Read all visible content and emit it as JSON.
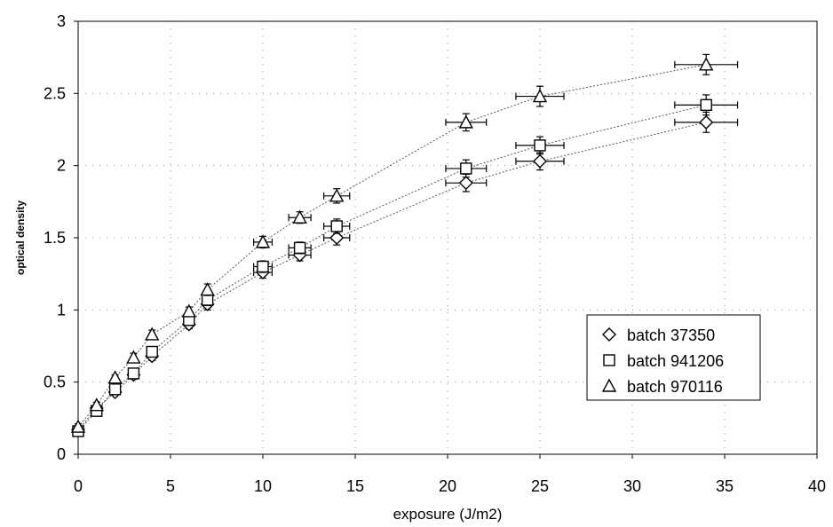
{
  "chart_data": {
    "type": "scatter",
    "title": "",
    "xlabel": "exposure (J/m2)",
    "ylabel": "optical density",
    "xlim": [
      0,
      40
    ],
    "ylim": [
      0,
      3
    ],
    "xticks": [
      "0",
      "5",
      "10",
      "15",
      "20",
      "25",
      "30",
      "35",
      "40"
    ],
    "yticks": [
      "0",
      "0.5",
      "1",
      "1.5",
      "2",
      "2.5",
      "3"
    ],
    "grid": "dotted",
    "legend_position": "lower-right",
    "series": [
      {
        "name": "batch 37350",
        "marker": "diamond",
        "x": [
          0,
          1,
          2,
          3,
          4,
          6,
          7,
          10,
          12,
          14,
          21,
          25,
          34
        ],
        "y": [
          0.17,
          0.32,
          0.43,
          0.55,
          0.68,
          0.9,
          1.04,
          1.26,
          1.38,
          1.5,
          1.88,
          2.03,
          2.3
        ],
        "xerr": [
          0,
          0,
          0,
          0,
          0,
          0,
          0,
          0.5,
          0.6,
          0.7,
          1.1,
          1.3,
          1.7
        ],
        "yerr": [
          0.02,
          0.02,
          0.02,
          0.03,
          0.03,
          0.03,
          0.04,
          0.04,
          0.04,
          0.05,
          0.06,
          0.06,
          0.07
        ]
      },
      {
        "name": "batch 941206",
        "marker": "square",
        "x": [
          0,
          1,
          2,
          3,
          4,
          6,
          7,
          10,
          12,
          14,
          21,
          25,
          34
        ],
        "y": [
          0.16,
          0.3,
          0.45,
          0.56,
          0.71,
          0.93,
          1.07,
          1.3,
          1.43,
          1.58,
          1.98,
          2.14,
          2.42
        ],
        "xerr": [
          0,
          0,
          0,
          0,
          0,
          0,
          0,
          0.5,
          0.6,
          0.7,
          1.1,
          1.3,
          1.7
        ],
        "yerr": [
          0.02,
          0.02,
          0.02,
          0.03,
          0.03,
          0.03,
          0.04,
          0.04,
          0.04,
          0.05,
          0.06,
          0.06,
          0.07
        ]
      },
      {
        "name": "batch 970116",
        "marker": "triangle",
        "x": [
          0,
          1,
          2,
          3,
          4,
          6,
          7,
          10,
          12,
          14,
          21,
          25,
          34
        ],
        "y": [
          0.19,
          0.34,
          0.53,
          0.67,
          0.83,
          0.99,
          1.14,
          1.47,
          1.64,
          1.79,
          2.3,
          2.48,
          2.7
        ],
        "xerr": [
          0,
          0,
          0,
          0,
          0,
          0,
          0,
          0.5,
          0.6,
          0.7,
          1.1,
          1.3,
          1.7
        ],
        "yerr": [
          0.02,
          0.02,
          0.02,
          0.03,
          0.03,
          0.03,
          0.04,
          0.04,
          0.04,
          0.05,
          0.06,
          0.07,
          0.07
        ]
      }
    ]
  }
}
